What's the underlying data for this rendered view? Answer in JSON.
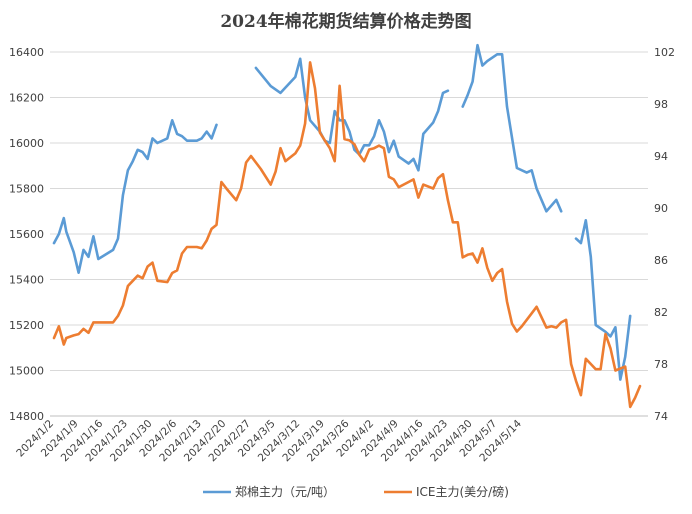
{
  "chart_data": {
    "type": "line",
    "title": "2024年棉花期货结算价格走势图",
    "x_ticks": [
      "2024/1/2",
      "2024/1/9",
      "2024/1/16",
      "2024/1/23",
      "2024/1/30",
      "2024/2/6",
      "2024/2/13",
      "2024/2/20",
      "2024/2/27",
      "2024/3/5",
      "2024/3/12",
      "2024/3/19",
      "2024/3/26",
      "2024/4/2",
      "2024/4/9",
      "2024/4/16",
      "2024/4/23",
      "2024/4/30",
      "2024/5/7",
      "2024/5/14"
    ],
    "left_axis": {
      "min": 14800,
      "max": 16400,
      "step": 200,
      "ticks": [
        "14800",
        "15000",
        "15200",
        "15400",
        "15600",
        "15800",
        "16000",
        "16200",
        "16400"
      ]
    },
    "right_axis": {
      "min": 74,
      "max": 102,
      "step": 4,
      "ticks": [
        "74",
        "78",
        "82",
        "86",
        "90",
        "94",
        "98",
        "102"
      ]
    },
    "legend_position": "bottom",
    "colors": {
      "zce": "#5b9bd5",
      "ice": "#ed7d31"
    },
    "series": [
      {
        "name": "郑棉主力（元/吨）",
        "axis": "left",
        "color": "#5b9bd5",
        "segments": [
          [
            [
              0,
              15560
            ],
            [
              1,
              15600
            ],
            [
              2,
              15670
            ],
            [
              2.5,
              15610
            ],
            [
              4,
              15520
            ],
            [
              5,
              15430
            ],
            [
              6,
              15530
            ],
            [
              7,
              15500
            ],
            [
              8,
              15590
            ],
            [
              9,
              15490
            ],
            [
              12,
              15530
            ],
            [
              13,
              15580
            ],
            [
              14,
              15770
            ],
            [
              15,
              15880
            ],
            [
              16,
              15920
            ],
            [
              17,
              15970
            ],
            [
              18,
              15960
            ],
            [
              19,
              15930
            ],
            [
              20,
              16020
            ],
            [
              21,
              16000
            ],
            [
              23,
              16020
            ],
            [
              24,
              16100
            ],
            [
              25,
              16040
            ],
            [
              26,
              16030
            ],
            [
              27,
              16010
            ],
            [
              29,
              16010
            ],
            [
              30,
              16020
            ],
            [
              31,
              16050
            ],
            [
              32,
              16020
            ],
            [
              33,
              16080
            ]
          ],
          [
            [
              41,
              16330
            ],
            [
              44,
              16250
            ],
            [
              46,
              16220
            ],
            [
              49,
              16290
            ],
            [
              50,
              16370
            ],
            [
              51,
              16200
            ],
            [
              52,
              16100
            ],
            [
              54,
              16050
            ],
            [
              55,
              16010
            ],
            [
              56,
              16000
            ],
            [
              57,
              16140
            ],
            [
              58,
              16100
            ],
            [
              59,
              16100
            ],
            [
              60,
              16050
            ],
            [
              61,
              15970
            ],
            [
              62,
              15950
            ],
            [
              63,
              15990
            ],
            [
              64,
              15990
            ],
            [
              65,
              16030
            ],
            [
              66,
              16100
            ],
            [
              67,
              16050
            ],
            [
              68,
              15960
            ],
            [
              69,
              16010
            ],
            [
              70,
              15940
            ],
            [
              72,
              15910
            ],
            [
              73,
              15930
            ],
            [
              74,
              15880
            ],
            [
              75,
              16040
            ],
            [
              77,
              16090
            ],
            [
              78,
              16140
            ],
            [
              79,
              16220
            ],
            [
              80,
              16230
            ]
          ],
          [
            [
              83,
              16160
            ],
            [
              84,
              16210
            ],
            [
              85,
              16270
            ],
            [
              86,
              16430
            ],
            [
              87,
              16340
            ],
            [
              88,
              16360
            ],
            [
              90,
              16390
            ],
            [
              91,
              16390
            ],
            [
              92,
              16160
            ],
            [
              94,
              15890
            ],
            [
              96,
              15870
            ],
            [
              97,
              15880
            ],
            [
              98,
              15800
            ],
            [
              100,
              15700
            ],
            [
              102,
              15750
            ],
            [
              103,
              15700
            ]
          ],
          [
            [
              106,
              15580
            ],
            [
              107,
              15560
            ],
            [
              108,
              15660
            ],
            [
              109,
              15500
            ],
            [
              110,
              15200
            ],
            [
              112,
              15170
            ],
            [
              113,
              15150
            ],
            [
              114,
              15190
            ],
            [
              115,
              14960
            ],
            [
              116,
              15060
            ],
            [
              117,
              15240
            ]
          ]
        ]
      },
      {
        "name": "ICE主力(美分/磅)",
        "axis": "right",
        "color": "#ed7d31",
        "segments": [
          [
            [
              0,
              80
            ],
            [
              1,
              80.9
            ],
            [
              2,
              79.5
            ],
            [
              2.5,
              80
            ],
            [
              4,
              80.2
            ],
            [
              5,
              80.3
            ],
            [
              6,
              80.7
            ],
            [
              7,
              80.4
            ],
            [
              8,
              81.2
            ],
            [
              9,
              81.2
            ],
            [
              12,
              81.2
            ],
            [
              13,
              81.7
            ],
            [
              14,
              82.5
            ],
            [
              15,
              84
            ],
            [
              16,
              84.4
            ],
            [
              17,
              84.8
            ],
            [
              18,
              84.6
            ],
            [
              19,
              85.5
            ],
            [
              20,
              85.8
            ],
            [
              21,
              84.4
            ],
            [
              23,
              84.3
            ],
            [
              24,
              85
            ],
            [
              25,
              85.2
            ],
            [
              26,
              86.5
            ],
            [
              27,
              87
            ],
            [
              29,
              87
            ],
            [
              30,
              86.9
            ],
            [
              31,
              87.5
            ],
            [
              32,
              88.4
            ],
            [
              33,
              88.7
            ],
            [
              34,
              92
            ],
            [
              35,
              91.5
            ],
            [
              37,
              90.6
            ],
            [
              38,
              91.5
            ],
            [
              39,
              93.5
            ],
            [
              40,
              94
            ],
            [
              42,
              93
            ],
            [
              44,
              91.8
            ],
            [
              45,
              92.8
            ],
            [
              46,
              94.6
            ],
            [
              47,
              93.6
            ],
            [
              49,
              94.2
            ],
            [
              50,
              94.8
            ],
            [
              51,
              96.5
            ],
            [
              52,
              101.2
            ],
            [
              53,
              99.2
            ],
            [
              54,
              95.8
            ],
            [
              55,
              95.2
            ],
            [
              56,
              94.6
            ],
            [
              57,
              93.6
            ],
            [
              58,
              99.4
            ],
            [
              59,
              95.3
            ],
            [
              60,
              95.2
            ],
            [
              61,
              94.9
            ],
            [
              62,
              94.1
            ],
            [
              63,
              93.6
            ],
            [
              64,
              94.5
            ],
            [
              65,
              94.6
            ],
            [
              66,
              94.8
            ],
            [
              67,
              94.6
            ],
            [
              68,
              92.4
            ],
            [
              69,
              92.2
            ],
            [
              70,
              91.6
            ],
            [
              71,
              91.8
            ],
            [
              72,
              92
            ],
            [
              73,
              92.2
            ],
            [
              74,
              90.8
            ],
            [
              75,
              91.8
            ],
            [
              77,
              91.5
            ],
            [
              78,
              92.3
            ],
            [
              79,
              92.6
            ],
            [
              80,
              90.6
            ],
            [
              81,
              88.9
            ],
            [
              82,
              88.9
            ],
            [
              83,
              86.2
            ],
            [
              84,
              86.4
            ],
            [
              85,
              86.5
            ],
            [
              86,
              85.8
            ],
            [
              87,
              86.9
            ],
            [
              88,
              85.4
            ],
            [
              89,
              84.4
            ],
            [
              90,
              85
            ],
            [
              91,
              85.3
            ],
            [
              92,
              82.8
            ],
            [
              93,
              81.1
            ],
            [
              94,
              80.5
            ],
            [
              95,
              80.9
            ],
            [
              97,
              81.9
            ],
            [
              98,
              82.4
            ],
            [
              99,
              81.6
            ],
            [
              100,
              80.8
            ],
            [
              101,
              80.9
            ],
            [
              102,
              80.8
            ],
            [
              103,
              81.2
            ],
            [
              104,
              81.4
            ],
            [
              105,
              78
            ],
            [
              106,
              76.7
            ],
            [
              107,
              75.6
            ],
            [
              108,
              78.4
            ],
            [
              109,
              78
            ],
            [
              110,
              77.6
            ],
            [
              111,
              77.6
            ],
            [
              112,
              80.3
            ],
            [
              113,
              79.2
            ],
            [
              114,
              77.5
            ],
            [
              116,
              77.8
            ],
            [
              117,
              74.7
            ],
            [
              118,
              75.4
            ],
            [
              119,
              76.3
            ]
          ]
        ]
      }
    ]
  }
}
